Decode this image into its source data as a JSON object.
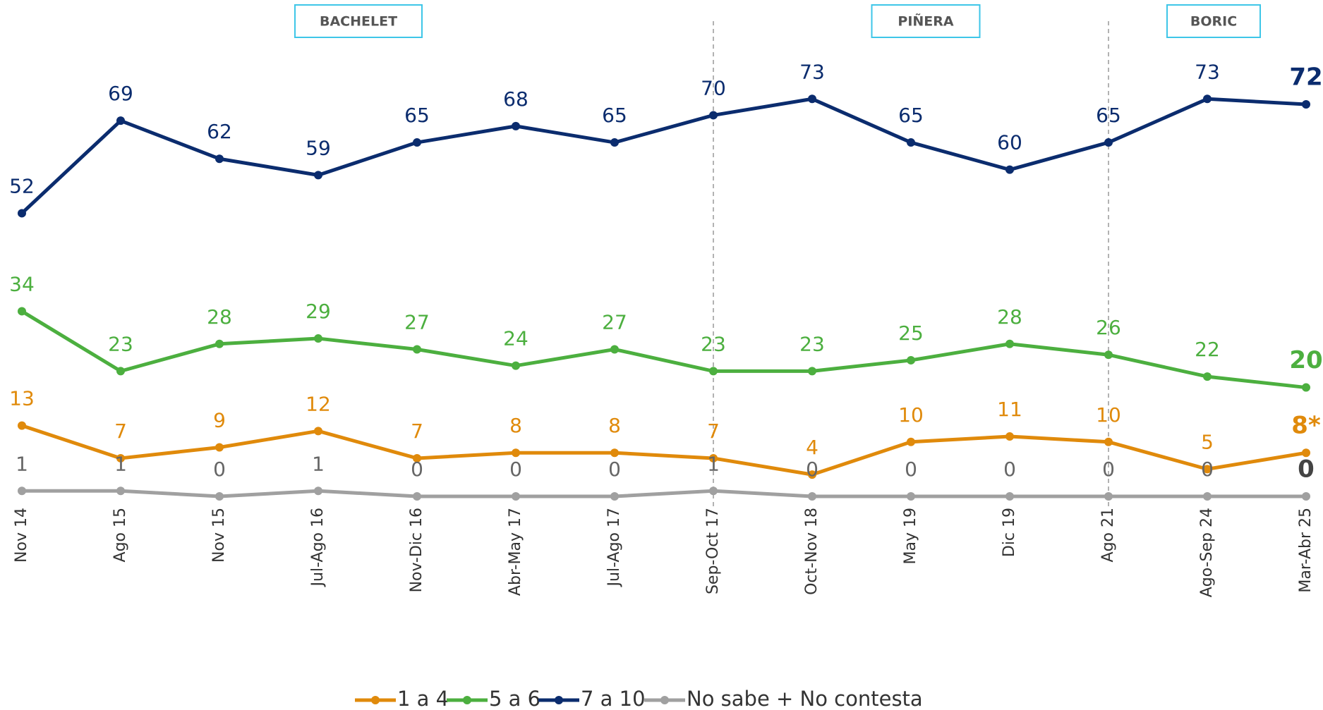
{
  "chart_data": {
    "type": "line",
    "periods": [
      "BACHELET",
      "PIÑERA",
      "BORIC"
    ],
    "categories": [
      "Nov 14",
      "Ago 15",
      "Nov 15",
      "Jul-Ago 16",
      "Nov-Dic 16",
      "Abr-May 17",
      "Jul-Ago 17",
      "Sep-Oct 17",
      "Oct-Nov 18",
      "May 19",
      "Dic 19",
      "Ago 21",
      "Ago-Sep 24",
      "Mar-Abr 25"
    ],
    "ylim": [
      0,
      90
    ],
    "series": [
      {
        "name": "1 a 4",
        "color": "#e08a0b",
        "values": [
          13,
          7,
          9,
          12,
          7,
          8,
          8,
          7,
          4,
          10,
          11,
          10,
          5,
          8
        ],
        "value_labels": [
          "13",
          "7",
          "9",
          "12",
          "7",
          "8",
          "8",
          "7",
          "4",
          "10",
          "11",
          "10",
          "5",
          "8*"
        ]
      },
      {
        "name": "5 a 6",
        "color": "#4caf3f",
        "values": [
          34,
          23,
          28,
          29,
          27,
          24,
          27,
          23,
          23,
          25,
          28,
          26,
          22,
          20
        ]
      },
      {
        "name": "7 a 10",
        "color": "#0b2c6e",
        "values": [
          52,
          69,
          62,
          59,
          65,
          68,
          65,
          70,
          73,
          65,
          60,
          65,
          73,
          72
        ]
      },
      {
        "name": "No sabe + No contesta",
        "color": "#a0a0a0",
        "values": [
          1,
          1,
          0,
          1,
          0,
          0,
          0,
          1,
          0,
          0,
          0,
          0,
          0,
          0
        ]
      }
    ]
  }
}
